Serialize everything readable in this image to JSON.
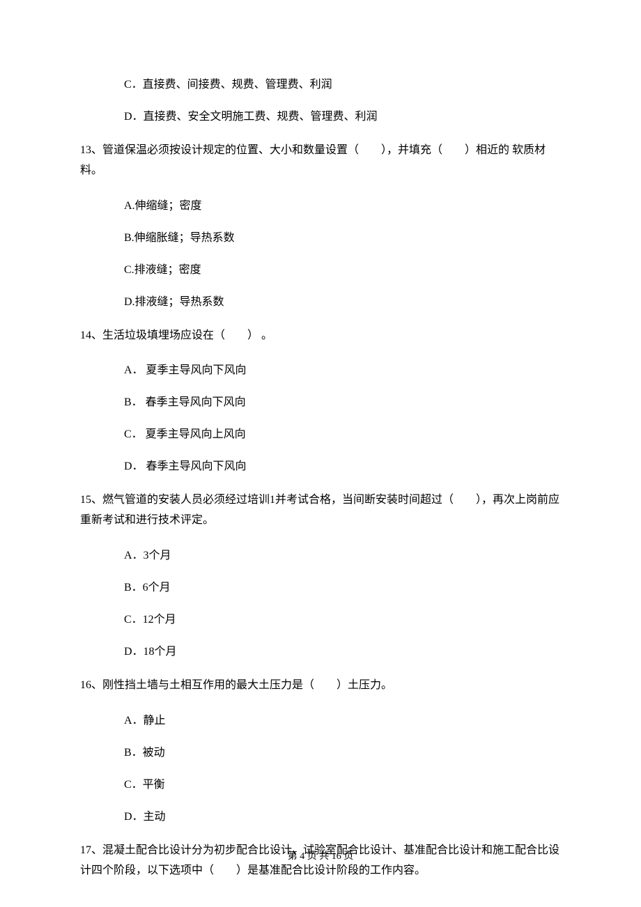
{
  "orphan_options": {
    "c": "C．直接费、间接费、规费、管理费、利润",
    "d": "D．直接费、安全文明施工费、规费、管理费、利润"
  },
  "q13": {
    "stem": "13、管道保温必须按设计规定的位置、大小和数量设置（　　），并填充（　　）相近的 软质材料。",
    "a": "A.伸缩缝；密度",
    "b": "B.伸缩胀缝；导热系数",
    "c": "C.排液缝；密度",
    "d": "D.排液缝；导热系数"
  },
  "q14": {
    "stem": "14、生活垃圾填埋场应设在（　　） 。",
    "a": "A． 夏季主导风向下风向",
    "b": "B． 春季主导风向下风向",
    "c": "C． 夏季主导风向上风向",
    "d": "D． 春季主导风向下风向"
  },
  "q15": {
    "stem": "15、燃气管道的安装人员必须经过培训1并考试合格，当间断安装时间超过（　　），再次上岗前应重新考试和进行技术评定。",
    "a": "A．3个月",
    "b": "B．6个月",
    "c": "C．12个月",
    "d": "D．18个月"
  },
  "q16": {
    "stem": "16、刚性挡土墙与土相互作用的最大土压力是（　　）土压力。",
    "a": "A．静止",
    "b": "B．被动",
    "c": "C．平衡",
    "d": "D．主动"
  },
  "q17": {
    "stem": "17、混凝土配合比设计分为初步配合比设计、试验室配合比设计、基准配合比设计和施工配合比设计四个阶段，以下选项中（　　）是基准配合比设计阶段的工作内容。"
  },
  "footer": "第 4 页 共 16 页"
}
